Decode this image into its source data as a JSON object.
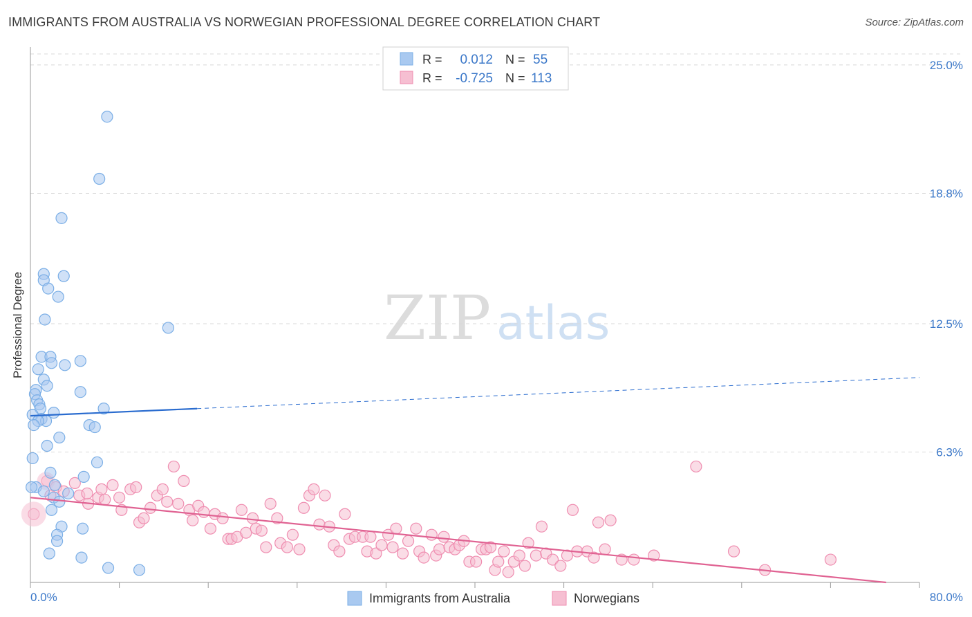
{
  "header": {
    "title": "IMMIGRANTS FROM AUSTRALIA VS NORWEGIAN PROFESSIONAL DEGREE CORRELATION CHART",
    "source": "Source: ZipAtlas.com"
  },
  "watermark": {
    "zip": "ZIP",
    "atlas": "atlas"
  },
  "colors": {
    "blue": "#7aaee6",
    "blue_fill": "#a9c9f0",
    "blue_line": "#2a6ccf",
    "pink": "#ef8db0",
    "pink_fill": "#f6bfd2",
    "pink_line": "#e06292",
    "value_text": "#3b78c9",
    "grid": "#d8d8d8"
  },
  "legend": {
    "rows": [
      {
        "r_label": "R =",
        "r_value": "0.012",
        "n_label": "N =",
        "n_value": "55"
      },
      {
        "r_label": "R =",
        "r_value": "-0.725",
        "n_label": "N =",
        "n_value": "113"
      }
    ]
  },
  "bottom_legend": [
    "Immigrants from Australia",
    "Norwegians"
  ],
  "chart_data": {
    "type": "scatter",
    "title": "IMMIGRANTS FROM AUSTRALIA VS NORWEGIAN PROFESSIONAL DEGREE CORRELATION CHART",
    "xlabel": "",
    "ylabel": "Professional Degree",
    "xlim": [
      0,
      80
    ],
    "ylim": [
      0,
      26
    ],
    "x_tick_labels": [
      "0.0%",
      "80.0%"
    ],
    "y_ticks": [
      6.3,
      12.5,
      18.8,
      25.0
    ],
    "y_tick_labels": [
      "6.3%",
      "12.5%",
      "18.8%",
      "25.0%"
    ],
    "grid": true,
    "series": [
      {
        "name": "Immigrants from Australia",
        "R": 0.012,
        "N": 55,
        "trend": {
          "x0": 0,
          "y0": 8.05,
          "x1": 80,
          "y1": 9.9,
          "solid_until": 15
        },
        "points": [
          [
            6.9,
            22.5
          ],
          [
            6.2,
            19.5
          ],
          [
            2.8,
            17.6
          ],
          [
            1.2,
            14.9
          ],
          [
            3.0,
            14.8
          ],
          [
            1.2,
            14.6
          ],
          [
            1.6,
            14.2
          ],
          [
            2.5,
            13.8
          ],
          [
            1.3,
            12.7
          ],
          [
            12.4,
            12.3
          ],
          [
            1.0,
            10.9
          ],
          [
            1.8,
            10.9
          ],
          [
            4.5,
            10.7
          ],
          [
            1.9,
            10.6
          ],
          [
            3.1,
            10.5
          ],
          [
            0.7,
            10.3
          ],
          [
            1.2,
            9.8
          ],
          [
            1.5,
            9.5
          ],
          [
            0.5,
            9.3
          ],
          [
            0.4,
            9.1
          ],
          [
            4.5,
            9.2
          ],
          [
            0.6,
            8.8
          ],
          [
            0.8,
            8.6
          ],
          [
            6.6,
            8.4
          ],
          [
            0.9,
            8.4
          ],
          [
            2.1,
            8.2
          ],
          [
            0.2,
            8.1
          ],
          [
            1.0,
            7.9
          ],
          [
            1.4,
            7.8
          ],
          [
            0.7,
            7.8
          ],
          [
            0.3,
            7.6
          ],
          [
            5.3,
            7.6
          ],
          [
            5.8,
            7.5
          ],
          [
            2.6,
            7.0
          ],
          [
            1.5,
            6.6
          ],
          [
            0.2,
            6.0
          ],
          [
            6.0,
            5.8
          ],
          [
            1.8,
            5.3
          ],
          [
            4.8,
            5.1
          ],
          [
            2.2,
            4.7
          ],
          [
            0.5,
            4.6
          ],
          [
            1.2,
            4.4
          ],
          [
            3.4,
            4.3
          ],
          [
            2.1,
            4.1
          ],
          [
            2.6,
            3.9
          ],
          [
            1.9,
            3.5
          ],
          [
            2.8,
            2.7
          ],
          [
            4.7,
            2.6
          ],
          [
            2.4,
            2.3
          ],
          [
            2.4,
            2.0
          ],
          [
            1.7,
            1.4
          ],
          [
            4.6,
            1.2
          ],
          [
            7.0,
            0.7
          ],
          [
            9.8,
            0.6
          ],
          [
            0.1,
            4.6
          ]
        ]
      },
      {
        "name": "Norwegians",
        "R": -0.725,
        "N": 113,
        "trend": {
          "x0": 0,
          "y0": 4.1,
          "x1": 77,
          "y1": 0.0
        },
        "points": [
          [
            0.3,
            3.3
          ],
          [
            1.5,
            4.9
          ],
          [
            2.3,
            4.6
          ],
          [
            1.8,
            4.2
          ],
          [
            3.0,
            4.4
          ],
          [
            4.0,
            4.8
          ],
          [
            4.4,
            4.2
          ],
          [
            5.2,
            3.8
          ],
          [
            5.1,
            4.3
          ],
          [
            6.1,
            4.1
          ],
          [
            6.4,
            4.5
          ],
          [
            6.7,
            4.0
          ],
          [
            7.4,
            4.7
          ],
          [
            8.0,
            4.1
          ],
          [
            8.2,
            3.5
          ],
          [
            9.0,
            4.5
          ],
          [
            9.5,
            4.6
          ],
          [
            9.8,
            2.9
          ],
          [
            10.2,
            3.1
          ],
          [
            10.8,
            3.6
          ],
          [
            11.4,
            4.2
          ],
          [
            11.9,
            4.5
          ],
          [
            12.3,
            3.9
          ],
          [
            12.9,
            5.6
          ],
          [
            13.3,
            3.8
          ],
          [
            13.8,
            4.9
          ],
          [
            14.3,
            3.5
          ],
          [
            14.6,
            3.0
          ],
          [
            15.1,
            3.7
          ],
          [
            15.6,
            3.4
          ],
          [
            16.2,
            2.6
          ],
          [
            16.6,
            3.3
          ],
          [
            17.3,
            3.1
          ],
          [
            17.8,
            2.1
          ],
          [
            18.1,
            2.1
          ],
          [
            18.6,
            2.2
          ],
          [
            19.0,
            3.5
          ],
          [
            19.4,
            2.4
          ],
          [
            20.0,
            3.1
          ],
          [
            20.3,
            2.6
          ],
          [
            20.8,
            2.5
          ],
          [
            21.2,
            1.7
          ],
          [
            21.6,
            3.8
          ],
          [
            22.2,
            3.1
          ],
          [
            22.5,
            1.9
          ],
          [
            23.1,
            1.7
          ],
          [
            23.6,
            2.3
          ],
          [
            24.2,
            1.6
          ],
          [
            24.6,
            3.6
          ],
          [
            25.1,
            4.2
          ],
          [
            25.5,
            4.5
          ],
          [
            26.0,
            2.8
          ],
          [
            26.5,
            4.2
          ],
          [
            26.9,
            2.7
          ],
          [
            27.3,
            1.8
          ],
          [
            27.8,
            1.5
          ],
          [
            28.3,
            3.3
          ],
          [
            28.7,
            2.1
          ],
          [
            29.2,
            2.2
          ],
          [
            29.9,
            2.2
          ],
          [
            30.3,
            1.5
          ],
          [
            30.6,
            2.2
          ],
          [
            31.1,
            1.4
          ],
          [
            31.6,
            1.8
          ],
          [
            32.2,
            2.3
          ],
          [
            32.6,
            1.7
          ],
          [
            32.9,
            2.6
          ],
          [
            33.5,
            1.4
          ],
          [
            34.0,
            2.0
          ],
          [
            34.7,
            2.6
          ],
          [
            35.0,
            1.5
          ],
          [
            35.4,
            1.2
          ],
          [
            36.1,
            2.3
          ],
          [
            36.5,
            1.3
          ],
          [
            36.8,
            1.6
          ],
          [
            37.2,
            2.2
          ],
          [
            37.7,
            1.7
          ],
          [
            38.2,
            1.6
          ],
          [
            38.6,
            1.8
          ],
          [
            39.0,
            2.0
          ],
          [
            39.5,
            1.0
          ],
          [
            40.1,
            1.0
          ],
          [
            40.6,
            1.6
          ],
          [
            41.0,
            1.6
          ],
          [
            41.4,
            1.7
          ],
          [
            41.8,
            0.6
          ],
          [
            42.1,
            1.0
          ],
          [
            42.6,
            1.5
          ],
          [
            43.0,
            0.5
          ],
          [
            43.5,
            1.0
          ],
          [
            44.0,
            1.3
          ],
          [
            44.5,
            0.8
          ],
          [
            44.8,
            1.9
          ],
          [
            45.5,
            1.3
          ],
          [
            46.0,
            2.7
          ],
          [
            46.4,
            1.4
          ],
          [
            47.0,
            1.1
          ],
          [
            47.7,
            0.8
          ],
          [
            48.3,
            1.3
          ],
          [
            48.8,
            3.5
          ],
          [
            49.2,
            1.5
          ],
          [
            50.1,
            1.5
          ],
          [
            50.7,
            1.2
          ],
          [
            51.1,
            2.9
          ],
          [
            51.7,
            1.6
          ],
          [
            52.2,
            3.0
          ],
          [
            53.2,
            1.1
          ],
          [
            54.3,
            1.1
          ],
          [
            56.1,
            1.3
          ],
          [
            59.9,
            5.6
          ],
          [
            63.3,
            1.5
          ],
          [
            66.1,
            0.6
          ],
          [
            72.0,
            1.1
          ]
        ]
      }
    ]
  }
}
